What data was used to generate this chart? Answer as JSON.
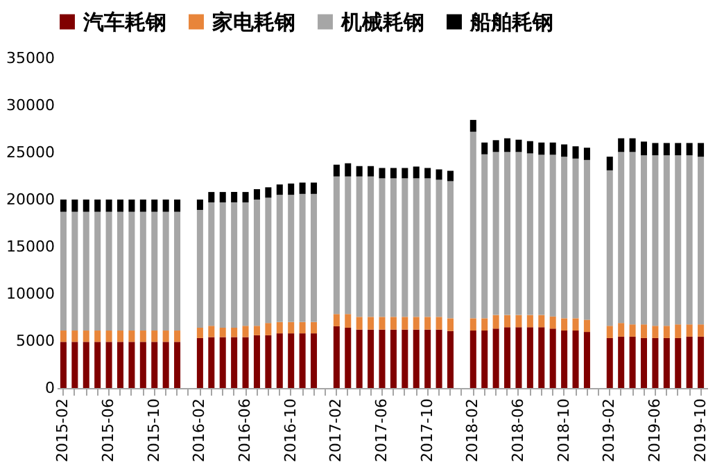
{
  "chart_data": {
    "type": "bar",
    "stacked": true,
    "legend": "top",
    "grid": false,
    "categories": [
      "2015-02",
      null,
      null,
      null,
      "2015-06",
      null,
      null,
      null,
      "2015-10",
      null,
      null,
      null,
      "2016-02",
      null,
      null,
      null,
      "2016-06",
      null,
      null,
      null,
      "2016-10",
      null,
      null,
      null,
      "2017-02",
      null,
      null,
      null,
      "2017-06",
      null,
      null,
      null,
      "2017-10",
      null,
      null,
      null,
      "2018-02",
      null,
      null,
      null,
      "2018-06",
      null,
      null,
      null,
      "2018-10",
      null,
      null,
      null,
      "2019-02",
      null,
      null,
      null,
      "2019-06",
      null,
      null,
      null,
      "2019-10"
    ],
    "ylim": [
      0,
      35000
    ],
    "yticks": [
      0,
      5000,
      10000,
      15000,
      20000,
      25000,
      30000,
      35000
    ],
    "series": [
      {
        "name": "汽车耗钢",
        "color": "#800000",
        "values": [
          4900,
          4900,
          4900,
          4900,
          4900,
          4900,
          4900,
          4900,
          4900,
          4900,
          4900,
          null,
          5300,
          5400,
          5400,
          5400,
          5400,
          5600,
          5600,
          5800,
          5800,
          5800,
          5800,
          null,
          6550,
          6400,
          6200,
          6200,
          6200,
          6200,
          6200,
          6200,
          6200,
          6200,
          6050,
          null,
          6100,
          6100,
          6300,
          6450,
          6450,
          6450,
          6450,
          6300,
          6100,
          6100,
          5950,
          null,
          5300,
          5450,
          5450,
          5300,
          5300,
          5300,
          5300,
          5450,
          5450
        ]
      },
      {
        "name": "家电耗钢",
        "color": "#e8853a",
        "values": [
          1200,
          1200,
          1200,
          1200,
          1200,
          1200,
          1200,
          1200,
          1200,
          1200,
          1200,
          null,
          1100,
          1200,
          1000,
          1000,
          1200,
          1000,
          1300,
          1200,
          1200,
          1200,
          1200,
          null,
          1300,
          1450,
          1350,
          1350,
          1350,
          1350,
          1350,
          1350,
          1350,
          1350,
          1350,
          null,
          1300,
          1300,
          1450,
          1300,
          1300,
          1300,
          1300,
          1300,
          1300,
          1300,
          1300,
          null,
          1300,
          1450,
          1300,
          1450,
          1300,
          1300,
          1450,
          1300,
          1300
        ]
      },
      {
        "name": "机械耗钢",
        "color": "#a6a6a6",
        "values": [
          12600,
          12600,
          12600,
          12600,
          12600,
          12600,
          12600,
          12600,
          12600,
          12600,
          12600,
          null,
          12500,
          13100,
          13300,
          13300,
          13100,
          13400,
          13300,
          13500,
          13500,
          13600,
          13600,
          null,
          14600,
          14600,
          14900,
          14900,
          14700,
          14700,
          14700,
          14700,
          14700,
          14550,
          14550,
          null,
          19800,
          17400,
          17300,
          17300,
          17300,
          17150,
          17000,
          17150,
          17150,
          16950,
          16950,
          null,
          16500,
          18150,
          18300,
          17950,
          18100,
          18100,
          17950,
          17950,
          17800
        ]
      },
      {
        "name": "船舶耗钢",
        "color": "#000000",
        "values": [
          1300,
          1300,
          1300,
          1300,
          1300,
          1300,
          1300,
          1300,
          1300,
          1300,
          1300,
          null,
          1100,
          1100,
          1100,
          1100,
          1100,
          1100,
          1100,
          1100,
          1200,
          1200,
          1200,
          null,
          1250,
          1400,
          1100,
          1100,
          1100,
          1100,
          1100,
          1250,
          1100,
          1100,
          1100,
          null,
          1250,
          1250,
          1250,
          1450,
          1300,
          1300,
          1300,
          1300,
          1300,
          1300,
          1300,
          null,
          1450,
          1450,
          1450,
          1450,
          1300,
          1300,
          1300,
          1300,
          1450
        ]
      }
    ]
  }
}
